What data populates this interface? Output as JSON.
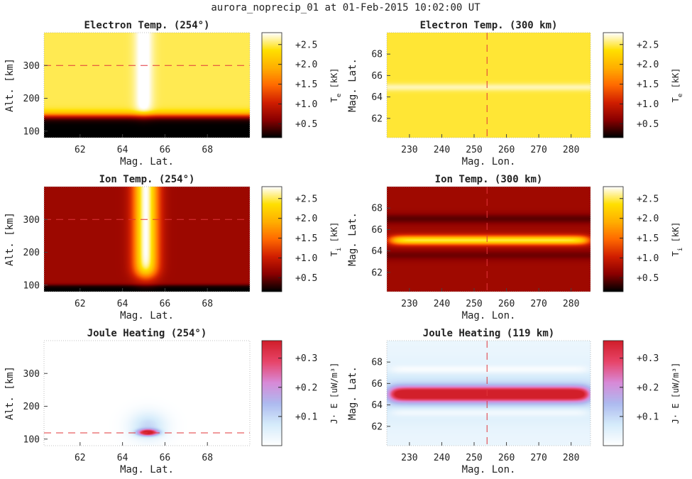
{
  "figure_title": "aurora_noprecip_01 at 01-Feb-2015 10:02:00 UT",
  "colormaps": {
    "hot": [
      "#000000",
      "#8b0000",
      "#d11f00",
      "#ff6a00",
      "#ffb000",
      "#ffe000",
      "#ffffff"
    ],
    "coolwarm": [
      "#ffffff",
      "#d6ecfb",
      "#aebbf0",
      "#d88ad8",
      "#e8456a",
      "#d21f2a"
    ]
  },
  "chart_data": [
    {
      "id": "te-alt",
      "type": "heatmap",
      "title": "Electron Temp. (254°)",
      "xlabel": "Mag. Lat.",
      "ylabel": "Alt. [km]",
      "xlim": [
        60.3,
        70.0
      ],
      "ylim": [
        80,
        400
      ],
      "xticks": [
        62,
        64,
        66,
        68
      ],
      "yticks": [
        100,
        200,
        300
      ],
      "colormap": "hot",
      "clim": [
        0.15,
        2.8
      ],
      "colorbar": {
        "label": "T",
        "subscript": "e",
        "unit": " [kK]",
        "ticks": [
          0.5,
          1.0,
          1.5,
          2.0,
          2.5
        ],
        "tick_labels": [
          "+0.5",
          "+1.0",
          "+1.5",
          "+2.0",
          "+2.5"
        ]
      },
      "field": "electron_temp_alt",
      "reference_line": {
        "orientation": "horizontal",
        "value": 300
      }
    },
    {
      "id": "te-map",
      "type": "heatmap",
      "title": "Electron Temp. (300 km)",
      "xlabel": "Mag. Lon.",
      "ylabel": "Mag. Lat.",
      "xlim": [
        223,
        286
      ],
      "ylim": [
        60.2,
        70.0
      ],
      "xticks": [
        230,
        240,
        250,
        260,
        270,
        280
      ],
      "yticks": [
        62,
        64,
        66,
        68
      ],
      "colormap": "hot",
      "clim": [
        0.15,
        2.8
      ],
      "colorbar": {
        "label": "T",
        "subscript": "e",
        "unit": " [kK]",
        "ticks": [
          0.5,
          1.0,
          1.5,
          2.0,
          2.5
        ],
        "tick_labels": [
          "+0.5",
          "+1.0",
          "+1.5",
          "+2.0",
          "+2.5"
        ]
      },
      "field": "electron_temp_map",
      "reference_line": {
        "orientation": "vertical",
        "value": 254
      }
    },
    {
      "id": "ti-alt",
      "type": "heatmap",
      "title": "Ion Temp. (254°)",
      "xlabel": "Mag. Lat.",
      "ylabel": "Alt. [km]",
      "xlim": [
        60.3,
        70.0
      ],
      "ylim": [
        80,
        400
      ],
      "xticks": [
        62,
        64,
        66,
        68
      ],
      "yticks": [
        100,
        200,
        300
      ],
      "colormap": "hot",
      "clim": [
        0.15,
        2.8
      ],
      "colorbar": {
        "label": "T",
        "subscript": "i",
        "unit": " [kK]",
        "ticks": [
          0.5,
          1.0,
          1.5,
          2.0,
          2.5
        ],
        "tick_labels": [
          "+0.5",
          "+1.0",
          "+1.5",
          "+2.0",
          "+2.5"
        ]
      },
      "field": "ion_temp_alt",
      "reference_line": {
        "orientation": "horizontal",
        "value": 300
      }
    },
    {
      "id": "ti-map",
      "type": "heatmap",
      "title": "Ion Temp. (300 km)",
      "xlabel": "Mag. Lon.",
      "ylabel": "Mag. Lat.",
      "xlim": [
        223,
        286
      ],
      "ylim": [
        60.2,
        70.0
      ],
      "xticks": [
        230,
        240,
        250,
        260,
        270,
        280
      ],
      "yticks": [
        62,
        64,
        66,
        68
      ],
      "colormap": "hot",
      "clim": [
        0.15,
        2.8
      ],
      "colorbar": {
        "label": "T",
        "subscript": "i",
        "unit": " [kK]",
        "ticks": [
          0.5,
          1.0,
          1.5,
          2.0,
          2.5
        ],
        "tick_labels": [
          "+0.5",
          "+1.0",
          "+1.5",
          "+2.0",
          "+2.5"
        ]
      },
      "field": "ion_temp_map",
      "reference_line": {
        "orientation": "vertical",
        "value": 254
      }
    },
    {
      "id": "jh-alt",
      "type": "heatmap",
      "title": "Joule Heating (254°)",
      "xlabel": "Mag. Lat.",
      "ylabel": "Alt. [km]",
      "xlim": [
        60.3,
        70.0
      ],
      "ylim": [
        80,
        400
      ],
      "xticks": [
        62,
        64,
        66,
        68
      ],
      "yticks": [
        100,
        200,
        300
      ],
      "colormap": "coolwarm",
      "clim": [
        0.0,
        0.36
      ],
      "colorbar": {
        "label": "J· E [uW/m³]",
        "subscript": "",
        "unit": "",
        "ticks": [
          0.1,
          0.2,
          0.3
        ],
        "tick_labels": [
          "+0.1",
          "+0.2",
          "+0.3"
        ]
      },
      "field": "joule_alt",
      "reference_line": {
        "orientation": "horizontal",
        "value": 119
      }
    },
    {
      "id": "jh-map",
      "type": "heatmap",
      "title": "Joule Heating (119 km)",
      "xlabel": "Mag. Lon.",
      "ylabel": "Mag. Lat.",
      "xlim": [
        223,
        286
      ],
      "ylim": [
        60.2,
        70.0
      ],
      "xticks": [
        230,
        240,
        250,
        260,
        270,
        280
      ],
      "yticks": [
        62,
        64,
        66,
        68
      ],
      "colormap": "coolwarm",
      "clim": [
        0.0,
        0.36
      ],
      "colorbar": {
        "label": "J· E [uW/m³]",
        "subscript": "",
        "unit": "",
        "ticks": [
          0.1,
          0.2,
          0.3
        ],
        "tick_labels": [
          "+0.1",
          "+0.2",
          "+0.3"
        ]
      },
      "field": "joule_map",
      "reference_line": {
        "orientation": "vertical",
        "value": 254
      }
    }
  ]
}
